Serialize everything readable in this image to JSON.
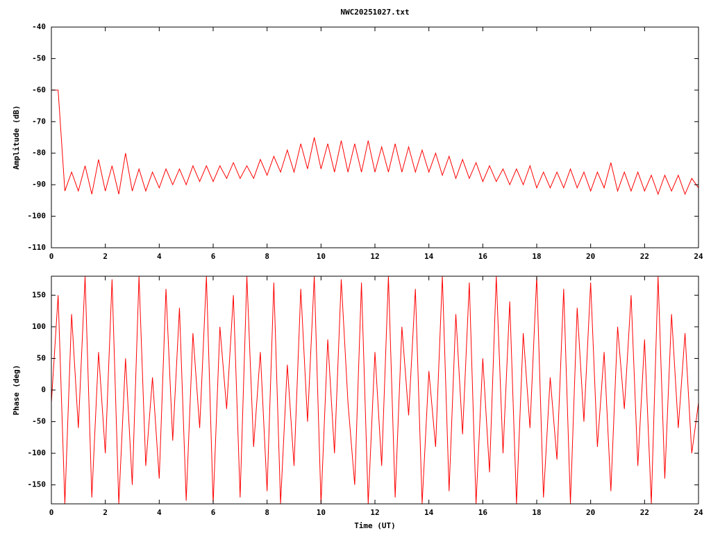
{
  "chart_data": [
    {
      "type": "line",
      "title": "NWC20251027.txt",
      "y_label": "Amplitude (dB)",
      "x": [
        0,
        0.25,
        0.5,
        0.75,
        1,
        1.25,
        1.5,
        1.75,
        2,
        2.25,
        2.5,
        2.75,
        3,
        3.25,
        3.5,
        3.75,
        4,
        4.25,
        4.5,
        4.75,
        5,
        5.25,
        5.5,
        5.75,
        6,
        6.25,
        6.5,
        6.75,
        7,
        7.25,
        7.5,
        7.75,
        8,
        8.25,
        8.5,
        8.75,
        9,
        9.25,
        9.5,
        9.75,
        10,
        10.25,
        10.5,
        10.75,
        11,
        11.25,
        11.5,
        11.75,
        12,
        12.25,
        12.5,
        12.75,
        13,
        13.25,
        13.5,
        13.75,
        14,
        14.25,
        14.5,
        14.75,
        15,
        15.25,
        15.5,
        15.75,
        16,
        16.25,
        16.5,
        16.75,
        17,
        17.25,
        17.5,
        17.75,
        18,
        18.25,
        18.5,
        18.75,
        19,
        19.25,
        19.5,
        19.75,
        20,
        20.25,
        20.5,
        20.75,
        21,
        21.25,
        21.5,
        21.75,
        22,
        22.25,
        22.5,
        22.75,
        23,
        23.25,
        23.5,
        23.75,
        24
      ],
      "series": [
        {
          "color": "#ff0000",
          "values": [
            -60,
            -60,
            -92,
            -86,
            -92,
            -84,
            -93,
            -82,
            -92,
            -84,
            -93,
            -80,
            -92,
            -85,
            -92,
            -86,
            -91,
            -85,
            -90,
            -85,
            -90,
            -84,
            -89,
            -84,
            -89,
            -84,
            -88,
            -83,
            -88,
            -84,
            -88,
            -82,
            -87,
            -81,
            -86,
            -79,
            -86,
            -77,
            -85,
            -75,
            -85,
            -77,
            -86,
            -76,
            -86,
            -77,
            -86,
            -76,
            -86,
            -78,
            -86,
            -77,
            -86,
            -78,
            -86,
            -79,
            -86,
            -80,
            -87,
            -81,
            -88,
            -82,
            -88,
            -83,
            -89,
            -84,
            -89,
            -85,
            -90,
            -85,
            -90,
            -84,
            -91,
            -86,
            -91,
            -86,
            -91,
            -85,
            -91,
            -86,
            -92,
            -86,
            -91,
            -83,
            -92,
            -86,
            -92,
            -86,
            -92,
            -87,
            -93,
            -87,
            -92,
            -87,
            -93,
            -88,
            -91
          ]
        }
      ],
      "xlim": [
        0,
        24
      ],
      "xticks": [
        0,
        2,
        4,
        6,
        8,
        10,
        12,
        14,
        16,
        18,
        20,
        22,
        24
      ],
      "ylim": [
        -110,
        -40
      ],
      "yticks": [
        -40,
        -50,
        -60,
        -70,
        -80,
        -90,
        -100,
        -110
      ]
    },
    {
      "type": "line",
      "x_label": "Time (UT)",
      "y_label": "Phase (deg)",
      "x": [
        0,
        0.25,
        0.5,
        0.75,
        1,
        1.25,
        1.5,
        1.75,
        2,
        2.25,
        2.5,
        2.75,
        3,
        3.25,
        3.5,
        3.75,
        4,
        4.25,
        4.5,
        4.75,
        5,
        5.25,
        5.5,
        5.75,
        6,
        6.25,
        6.5,
        6.75,
        7,
        7.25,
        7.5,
        7.75,
        8,
        8.25,
        8.5,
        8.75,
        9,
        9.25,
        9.5,
        9.75,
        10,
        10.25,
        10.5,
        10.75,
        11,
        11.25,
        11.5,
        11.75,
        12,
        12.25,
        12.5,
        12.75,
        13,
        13.25,
        13.5,
        13.75,
        14,
        14.25,
        14.5,
        14.75,
        15,
        15.25,
        15.5,
        15.75,
        16,
        16.25,
        16.5,
        16.75,
        17,
        17.25,
        17.5,
        17.75,
        18,
        18.25,
        18.5,
        18.75,
        19,
        19.25,
        19.5,
        19.75,
        20,
        20.25,
        20.5,
        20.75,
        21,
        21.25,
        21.5,
        21.75,
        22,
        22.25,
        22.5,
        22.75,
        23,
        23.25,
        23.5,
        23.75,
        24
      ],
      "series": [
        {
          "color": "#ff0000",
          "values": [
            -20,
            150,
            -180,
            120,
            -60,
            180,
            -170,
            60,
            -100,
            175,
            -180,
            50,
            -150,
            180,
            -120,
            20,
            -140,
            160,
            -80,
            130,
            -175,
            90,
            -60,
            180,
            -180,
            100,
            -30,
            150,
            -170,
            180,
            -90,
            60,
            -160,
            170,
            -180,
            40,
            -120,
            160,
            -50,
            180,
            -180,
            80,
            -100,
            175,
            -20,
            -150,
            170,
            -180,
            60,
            -120,
            180,
            -170,
            100,
            -40,
            160,
            -180,
            30,
            -90,
            180,
            -160,
            120,
            -70,
            170,
            -180,
            50,
            -130,
            180,
            -100,
            140,
            -180,
            90,
            -60,
            180,
            -170,
            20,
            -110,
            160,
            -180,
            130,
            -50,
            170,
            -90,
            60,
            -160,
            100,
            -30,
            150,
            -120,
            80,
            -180,
            180,
            -140,
            120,
            -60,
            90,
            -100,
            -20
          ]
        }
      ],
      "xlim": [
        0,
        24
      ],
      "xticks": [
        0,
        2,
        4,
        6,
        8,
        10,
        12,
        14,
        16,
        18,
        20,
        22,
        24
      ],
      "ylim": [
        -180,
        180
      ],
      "yticks": [
        150,
        100,
        50,
        0,
        -50,
        -100,
        -150
      ]
    }
  ]
}
